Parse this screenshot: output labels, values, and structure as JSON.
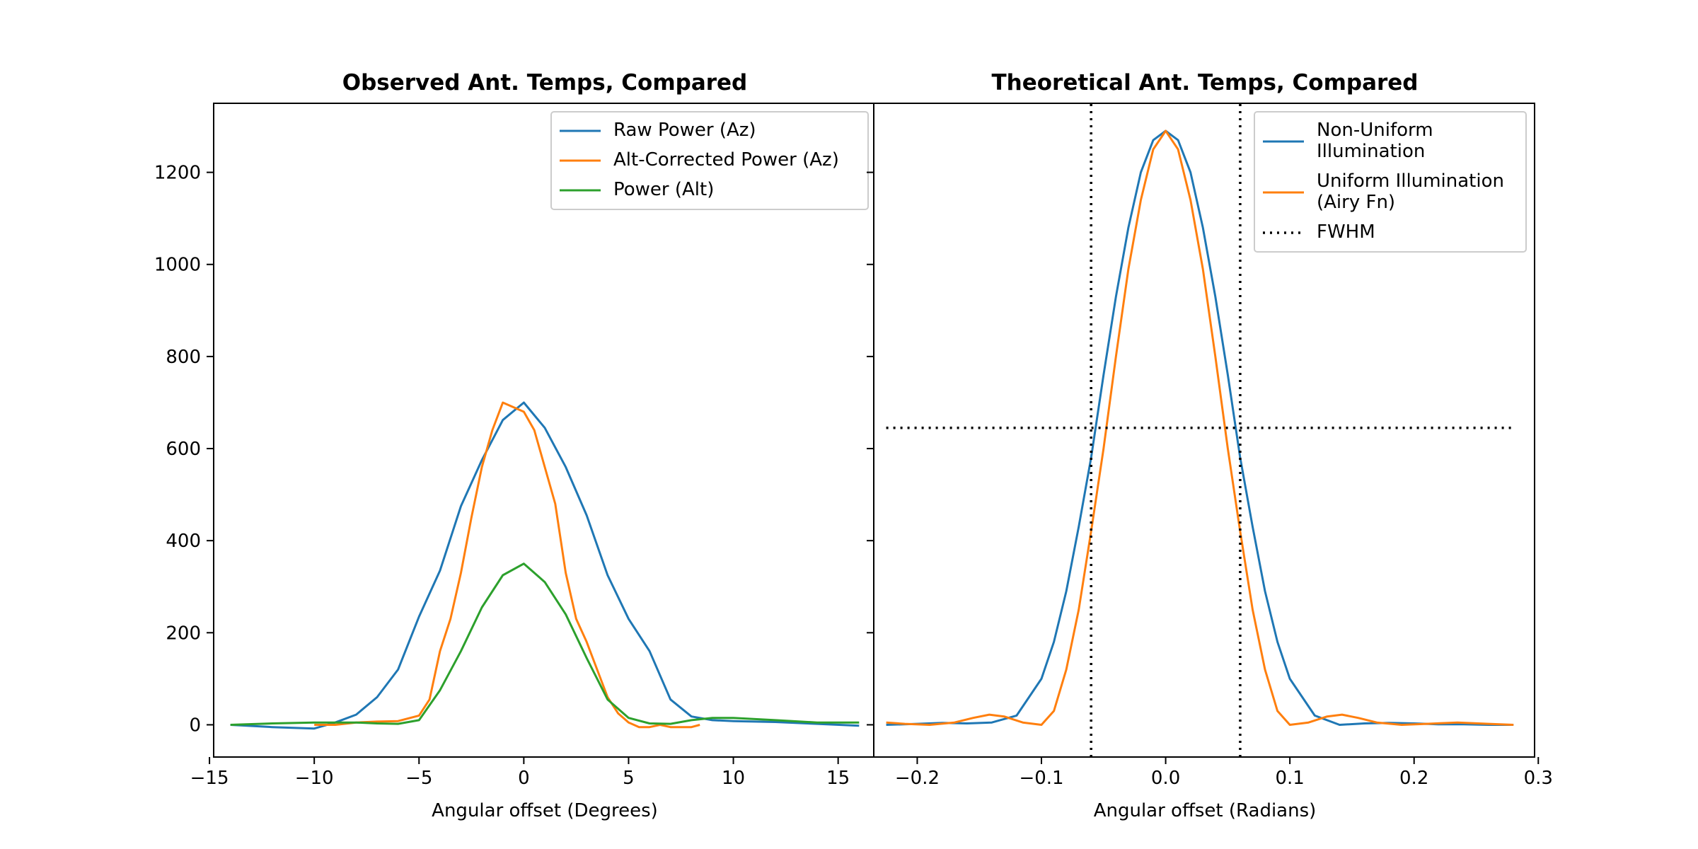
{
  "chart_data": [
    {
      "type": "line",
      "title": "Observed Ant. Temps, Compared",
      "xlabel": "Angular offset (Degrees)",
      "ylabel": "",
      "xlim": [
        -14.8,
        16.7
      ],
      "ylim": [
        -70,
        1350
      ],
      "xticks": [
        -15,
        -10,
        -5,
        0,
        5,
        10,
        15
      ],
      "xtick_labels": [
        "−15",
        "−10",
        "−5",
        "0",
        "5",
        "10",
        "15"
      ],
      "yticks": [
        0,
        200,
        400,
        600,
        800,
        1000,
        1200
      ],
      "ytick_labels": [
        "0",
        "200",
        "400",
        "600",
        "800",
        "1000",
        "1200"
      ],
      "legend": "top-right",
      "grid": false,
      "series": [
        {
          "name": "Raw Power (Az)",
          "color": "#1f77b4",
          "x": [
            -14,
            -12,
            -10,
            -9,
            -8,
            -7,
            -6,
            -5,
            -4,
            -3,
            -2,
            -1,
            0,
            1,
            2,
            3,
            4,
            5,
            6,
            7,
            8,
            9,
            10,
            12,
            14,
            16
          ],
          "y": [
            0,
            -5,
            -8,
            5,
            22,
            60,
            120,
            235,
            335,
            475,
            575,
            662,
            700,
            645,
            560,
            455,
            325,
            230,
            160,
            55,
            18,
            10,
            8,
            6,
            2,
            -2
          ]
        },
        {
          "name": "Alt-Corrected Power (Az)",
          "color": "#ff7f0e",
          "x": [
            -10,
            -9,
            -8,
            -7,
            -6,
            -5,
            -4.5,
            -4,
            -3.5,
            -3,
            -2.5,
            -2,
            -1.5,
            -1,
            -0.5,
            0,
            0.5,
            1,
            1.5,
            2,
            2.5,
            3,
            3.5,
            4,
            4.5,
            5,
            5.5,
            6,
            6.5,
            7,
            8,
            8.4
          ],
          "y": [
            0,
            0,
            5,
            7,
            8,
            20,
            55,
            160,
            230,
            330,
            450,
            560,
            640,
            700,
            690,
            680,
            640,
            560,
            480,
            330,
            230,
            180,
            120,
            60,
            25,
            5,
            -5,
            -5,
            0,
            -5,
            -5,
            0
          ]
        },
        {
          "name": "Power (Alt)",
          "color": "#2ca02c",
          "x": [
            -14,
            -12,
            -10,
            -8,
            -7,
            -6,
            -5,
            -4,
            -3,
            -2,
            -1,
            0,
            1,
            2,
            3,
            4,
            5,
            6,
            7,
            8,
            9,
            10,
            12,
            14,
            16
          ],
          "y": [
            0,
            3,
            5,
            5,
            3,
            2,
            10,
            75,
            160,
            255,
            325,
            350,
            310,
            240,
            145,
            55,
            15,
            3,
            2,
            10,
            15,
            15,
            10,
            5,
            5
          ]
        }
      ]
    },
    {
      "type": "line",
      "title": "Theoretical Ant. Temps, Compared",
      "xlabel": "Angular offset (Radians)",
      "ylabel": "",
      "xlim": [
        -0.235,
        0.297
      ],
      "ylim": [
        -70,
        1350
      ],
      "xticks": [
        -0.2,
        -0.1,
        0.0,
        0.1,
        0.2,
        0.3
      ],
      "xtick_labels": [
        "−0.2",
        "−0.1",
        "0.0",
        "0.1",
        "0.2",
        "0.3"
      ],
      "yticks": [
        0,
        200,
        400,
        600,
        800,
        1000,
        1200
      ],
      "legend": "top-right",
      "grid": false,
      "series": [
        {
          "name": "Non-Uniform\nIllumination",
          "color": "#1f77b4",
          "x": [
            -0.225,
            -0.2,
            -0.18,
            -0.16,
            -0.14,
            -0.12,
            -0.1,
            -0.09,
            -0.08,
            -0.07,
            -0.06,
            -0.05,
            -0.04,
            -0.03,
            -0.02,
            -0.01,
            0.0,
            0.01,
            0.02,
            0.03,
            0.04,
            0.05,
            0.06,
            0.07,
            0.08,
            0.09,
            0.1,
            0.12,
            0.14,
            0.16,
            0.18,
            0.2,
            0.22,
            0.24,
            0.26,
            0.28
          ],
          "y": [
            0,
            2,
            4,
            3,
            5,
            20,
            100,
            180,
            290,
            430,
            580,
            760,
            930,
            1080,
            1200,
            1270,
            1290,
            1270,
            1200,
            1080,
            930,
            760,
            580,
            430,
            290,
            180,
            100,
            20,
            0,
            3,
            4,
            3,
            1,
            1,
            0,
            0
          ]
        },
        {
          "name": "Uniform Illumination\n(Airy Fn)",
          "color": "#ff7f0e",
          "x": [
            -0.225,
            -0.21,
            -0.19,
            -0.17,
            -0.155,
            -0.142,
            -0.13,
            -0.115,
            -0.1,
            -0.09,
            -0.08,
            -0.07,
            -0.06,
            -0.05,
            -0.04,
            -0.03,
            -0.02,
            -0.01,
            0.0,
            0.01,
            0.02,
            0.03,
            0.04,
            0.05,
            0.06,
            0.07,
            0.08,
            0.09,
            0.1,
            0.115,
            0.13,
            0.142,
            0.155,
            0.17,
            0.19,
            0.21,
            0.235,
            0.26,
            0.28
          ],
          "y": [
            5,
            2,
            0,
            5,
            15,
            22,
            18,
            5,
            0,
            30,
            120,
            250,
            420,
            600,
            800,
            990,
            1140,
            1250,
            1290,
            1250,
            1140,
            990,
            800,
            600,
            420,
            250,
            120,
            30,
            0,
            5,
            18,
            22,
            15,
            5,
            0,
            2,
            5,
            2,
            0
          ]
        },
        {
          "name": "FWHM",
          "color": "#000000",
          "style": "dotted",
          "segments": [
            {
              "x": [
                -0.225,
                0.28
              ],
              "y": [
                645,
                645
              ]
            },
            {
              "x": [
                -0.06,
                -0.06
              ],
              "y": [
                -70,
                1350
              ]
            },
            {
              "x": [
                0.06,
                0.06
              ],
              "y": [
                -70,
                1350
              ]
            }
          ]
        }
      ]
    }
  ]
}
